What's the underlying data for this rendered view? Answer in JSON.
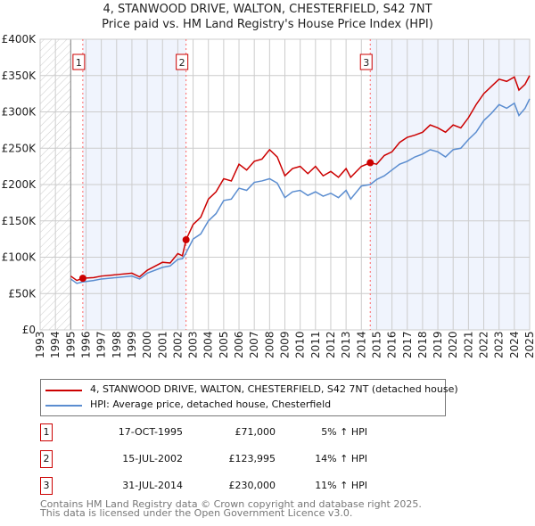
{
  "chart_data": {
    "type": "line",
    "title": "4, STANWOOD DRIVE, WALTON, CHESTERFIELD, S42 7NT",
    "subtitle": "Price paid vs. HM Land Registry's House Price Index (HPI)",
    "xlim": [
      1993,
      2025
    ],
    "ylim": [
      0,
      400000
    ],
    "x_ticks": [
      "1993",
      "1994",
      "1995",
      "1996",
      "1997",
      "1998",
      "1999",
      "2000",
      "2001",
      "2002",
      "2003",
      "2004",
      "2005",
      "2006",
      "2007",
      "2008",
      "2009",
      "2010",
      "2011",
      "2012",
      "2013",
      "2014",
      "2015",
      "2016",
      "2017",
      "2018",
      "2019",
      "2020",
      "2021",
      "2022",
      "2023",
      "2024",
      "2025"
    ],
    "y_ticks": [
      {
        "v": 0,
        "label": "£0"
      },
      {
        "v": 50000,
        "label": "£50K"
      },
      {
        "v": 100000,
        "label": "£100K"
      },
      {
        "v": 150000,
        "label": "£150K"
      },
      {
        "v": 200000,
        "label": "£200K"
      },
      {
        "v": 250000,
        "label": "£250K"
      },
      {
        "v": 300000,
        "label": "£300K"
      },
      {
        "v": 350000,
        "label": "£350K"
      },
      {
        "v": 400000,
        "label": "£400K"
      }
    ],
    "grid": true,
    "series": [
      {
        "name": "4, STANWOOD DRIVE, WALTON, CHESTERFIELD, S42 7NT (detached house)",
        "color": "#cc0000",
        "x": [
          1995,
          1995.4,
          1995.79,
          1996.5,
          1997,
          1998,
          1999,
          1999.5,
          2000,
          2001,
          2001.5,
          2002,
          2002.3,
          2002.54,
          2003,
          2003.5,
          2004,
          2004.5,
          2005,
          2005.5,
          2006,
          2006.5,
          2007,
          2007.5,
          2008,
          2008.5,
          2009,
          2009.5,
          2010,
          2010.5,
          2011,
          2011.5,
          2012,
          2012.5,
          2013,
          2013.3,
          2014,
          2014.58,
          2015,
          2015.5,
          2016,
          2016.5,
          2017,
          2017.5,
          2018,
          2018.5,
          2019,
          2019.5,
          2020,
          2020.5,
          2021,
          2021.5,
          2022,
          2022.5,
          2023,
          2023.5,
          2024,
          2024.3,
          2024.7,
          2025
        ],
        "y": [
          74000,
          68000,
          71000,
          72000,
          74000,
          76000,
          78000,
          73000,
          82000,
          93000,
          92000,
          105000,
          102000,
          123995,
          145000,
          155000,
          180000,
          190000,
          208000,
          205000,
          228000,
          220000,
          232000,
          235000,
          248000,
          238000,
          212000,
          222000,
          225000,
          215000,
          225000,
          212000,
          218000,
          210000,
          222000,
          210000,
          225000,
          230000,
          228000,
          240000,
          245000,
          258000,
          265000,
          268000,
          272000,
          282000,
          278000,
          272000,
          282000,
          278000,
          292000,
          310000,
          325000,
          335000,
          345000,
          342000,
          348000,
          330000,
          338000,
          350000
        ]
      },
      {
        "name": "HPI: Average price, detached house, Chesterfield",
        "color": "#5b8dd0",
        "x": [
          1995,
          1995.4,
          1995.79,
          1996.5,
          1997,
          1998,
          1999,
          1999.5,
          2000,
          2001,
          2001.5,
          2002,
          2002.3,
          2002.54,
          2003,
          2003.5,
          2004,
          2004.5,
          2005,
          2005.5,
          2006,
          2006.5,
          2007,
          2007.5,
          2008,
          2008.5,
          2009,
          2009.5,
          2010,
          2010.5,
          2011,
          2011.5,
          2012,
          2012.5,
          2013,
          2013.3,
          2014,
          2014.58,
          2015,
          2015.5,
          2016,
          2016.5,
          2017,
          2017.5,
          2018,
          2018.5,
          2019,
          2019.5,
          2020,
          2020.5,
          2021,
          2021.5,
          2022,
          2022.5,
          2023,
          2023.5,
          2024,
          2024.3,
          2024.7,
          2025
        ],
        "y": [
          70000,
          64000,
          66000,
          68000,
          70000,
          72000,
          74000,
          70000,
          78000,
          86000,
          88000,
          97000,
          98000,
          106000,
          125000,
          132000,
          150000,
          160000,
          178000,
          180000,
          195000,
          192000,
          203000,
          205000,
          208000,
          202000,
          182000,
          190000,
          192000,
          185000,
          190000,
          184000,
          188000,
          182000,
          192000,
          180000,
          198000,
          200000,
          207000,
          212000,
          220000,
          228000,
          232000,
          238000,
          242000,
          248000,
          245000,
          238000,
          248000,
          250000,
          262000,
          272000,
          288000,
          298000,
          310000,
          305000,
          312000,
          295000,
          305000,
          318000
        ]
      }
    ],
    "sales": [
      {
        "n": "1",
        "x": 1995.79,
        "y": 71000,
        "date": "17-OCT-1995",
        "price": "£71,000",
        "hpi": "5% ↑ HPI"
      },
      {
        "n": "2",
        "x": 2002.54,
        "y": 123995,
        "date": "15-JUL-2002",
        "price": "£123,995",
        "hpi": "14% ↑ HPI"
      },
      {
        "n": "3",
        "x": 2014.58,
        "y": 230000,
        "date": "31-JUL-2014",
        "price": "£230,000",
        "hpi": "11% ↑ HPI"
      }
    ]
  },
  "title": "4, STANWOOD DRIVE, WALTON, CHESTERFIELD, S42 7NT",
  "subtitle": "Price paid vs. HM Land Registry's House Price Index (HPI)",
  "legend": {
    "property": "4, STANWOOD DRIVE, WALTON, CHESTERFIELD, S42 7NT (detached house)",
    "hpi": "HPI: Average price, detached house, Chesterfield"
  },
  "footer": {
    "line1": "Contains HM Land Registry data © Crown copyright and database right 2025.",
    "line2": "This data is licensed under the Open Government Licence v3.0."
  }
}
